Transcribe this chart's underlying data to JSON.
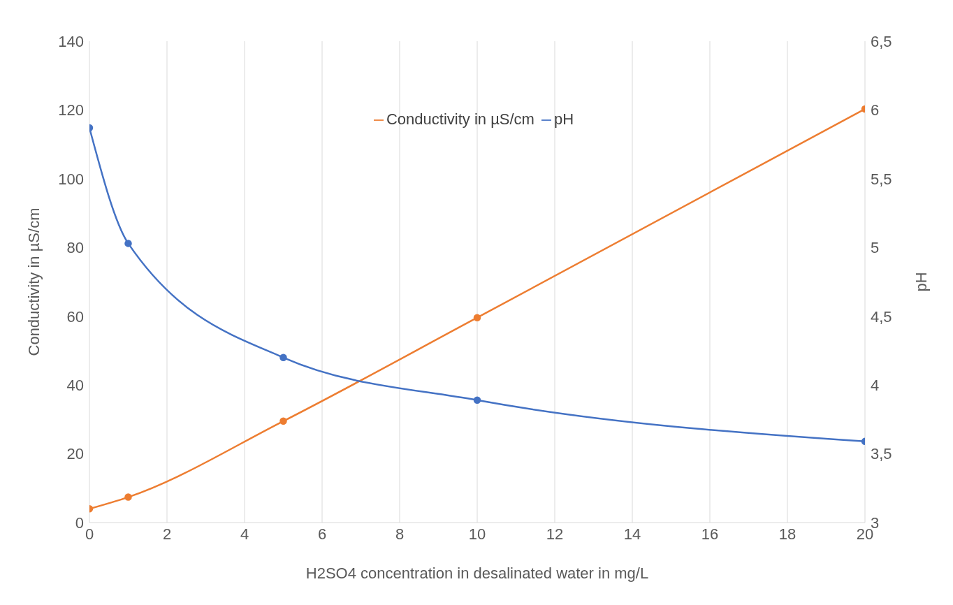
{
  "chart_data": {
    "type": "line",
    "xlabel": "H2SO4 concentration in desalinated water in mg/L",
    "ylabel": "Conductivity in µS/cm",
    "y2label": "pH",
    "x": [
      0,
      1,
      5,
      10,
      20
    ],
    "series": [
      {
        "name": "Conductivity in µS/cm",
        "color": "#ed7d31",
        "values": [
          4.0,
          7.4,
          29.5,
          59.6,
          120.3
        ]
      },
      {
        "name": "pH",
        "color": "#4472c4",
        "axis": "y2",
        "values": [
          5.87,
          5.03,
          4.2,
          3.89,
          3.59
        ]
      }
    ],
    "xlim": [
      0,
      20
    ],
    "xticks": [
      0,
      2,
      4,
      6,
      8,
      10,
      12,
      14,
      16,
      18,
      20
    ],
    "ylim": [
      0,
      140
    ],
    "yticks": [
      0,
      20,
      40,
      60,
      80,
      100,
      120,
      140
    ],
    "y2lim": [
      3,
      6.5
    ],
    "y2ticks": [
      3,
      {
        "value": 3.5,
        "label": "3,5"
      },
      4,
      {
        "value": 4.5,
        "label": "4,5"
      },
      5,
      {
        "value": 5.5,
        "label": "5,5"
      },
      6,
      {
        "value": 6.5,
        "label": "6,5"
      }
    ],
    "grid": true,
    "legend": "top",
    "marker": "circle",
    "line_style": "solid"
  }
}
